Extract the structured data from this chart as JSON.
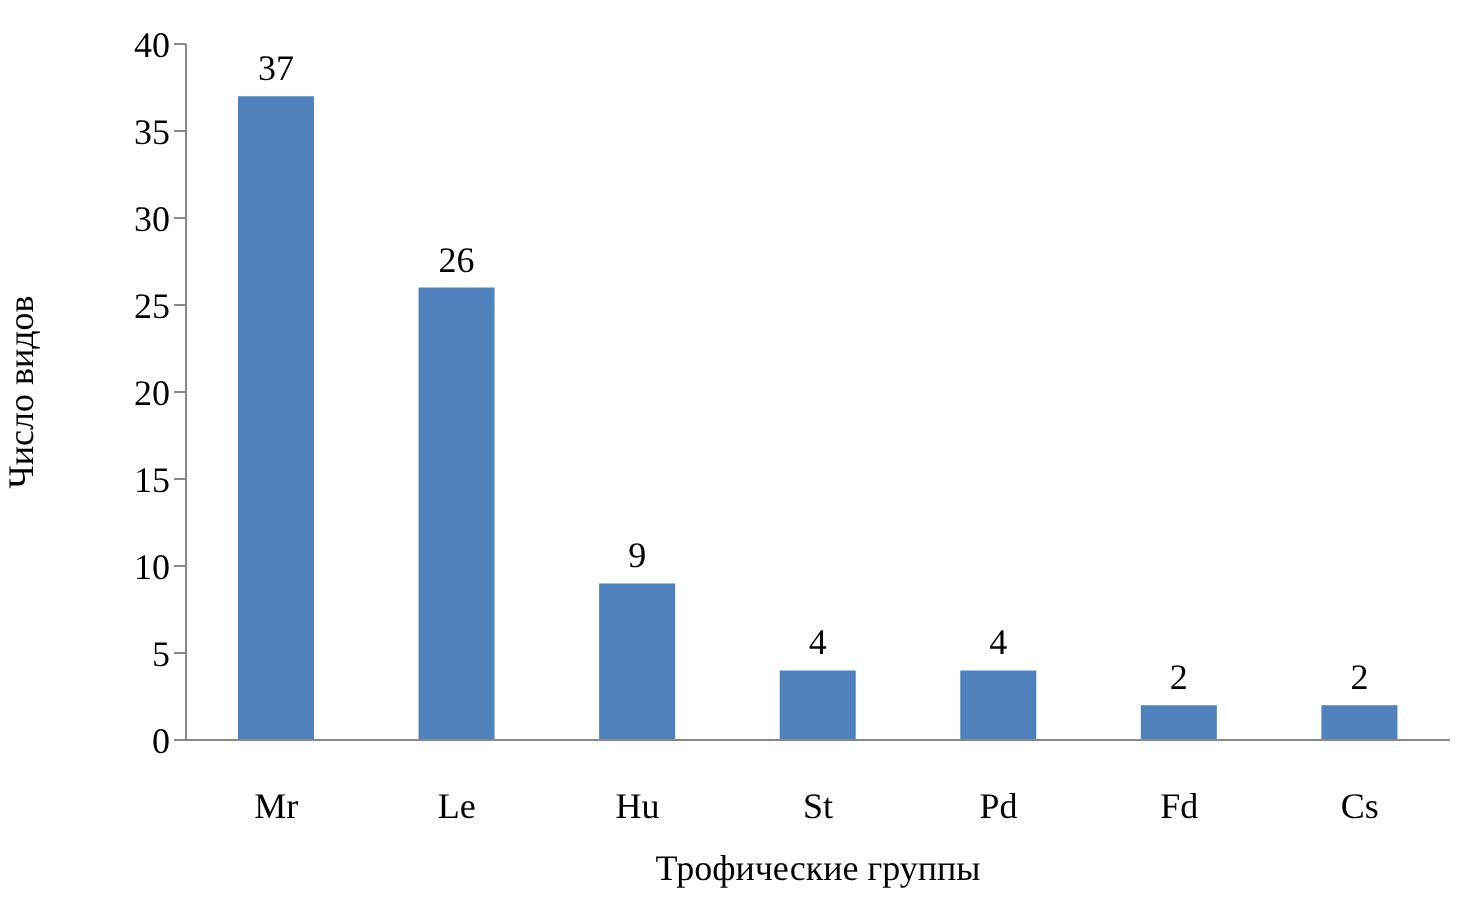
{
  "chart_data": {
    "type": "bar",
    "xlabel": "Трофические группы",
    "ylabel": "Число видов",
    "categories": [
      "Mr",
      "Le",
      "Hu",
      "St",
      "Pd",
      "Fd",
      "Cs"
    ],
    "values": [
      37,
      26,
      9,
      4,
      4,
      2,
      2
    ],
    "color": "#4f81bd",
    "ylim": [
      0,
      40
    ],
    "yticks": [
      0,
      5,
      10,
      15,
      20,
      25,
      30,
      35,
      40
    ],
    "grid": false,
    "legend": false,
    "data_labels": true
  }
}
